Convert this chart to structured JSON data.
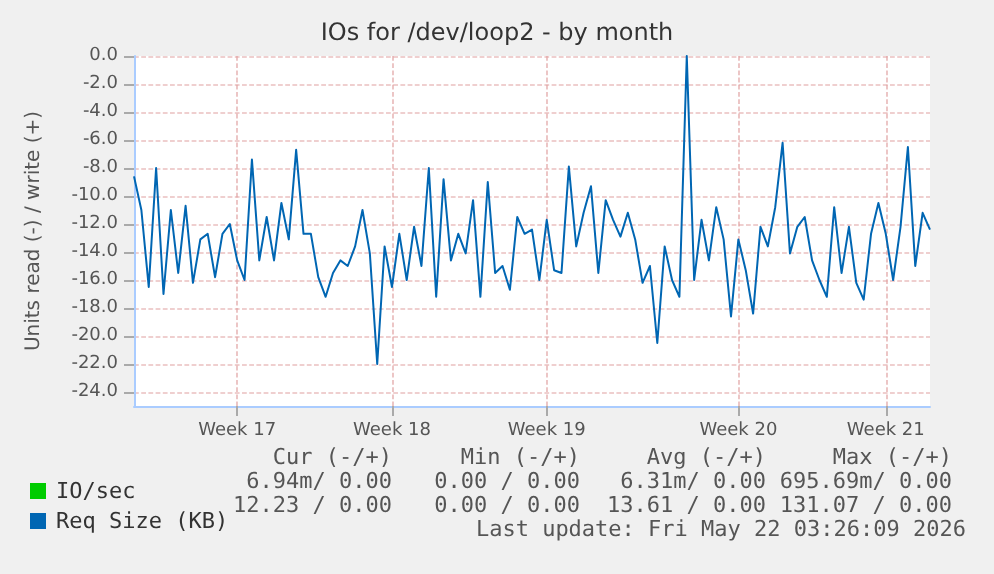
{
  "chart_data": {
    "type": "line",
    "title": "IOs for /dev/loop2 - by month",
    "ylabel": "Units read (-) / write (+)",
    "categories": [
      null,
      null,
      null,
      null,
      null,
      null,
      null,
      null,
      null,
      null,
      null,
      null,
      null,
      null,
      "Week 17",
      null,
      null,
      null,
      null,
      null,
      null,
      null,
      null,
      null,
      null,
      null,
      null,
      null,
      null,
      null,
      null,
      null,
      null,
      null,
      null,
      "Week 18",
      null,
      null,
      null,
      null,
      null,
      null,
      null,
      null,
      null,
      null,
      null,
      null,
      null,
      null,
      null,
      null,
      null,
      null,
      null,
      null,
      "Week 19",
      null,
      null,
      null,
      null,
      null,
      null,
      null,
      null,
      null,
      null,
      null,
      null,
      null,
      null,
      null,
      null,
      null,
      null,
      null,
      null,
      null,
      null,
      null,
      null,
      null,
      "Week 20",
      null,
      null,
      null,
      null,
      null,
      null,
      null,
      null,
      null,
      null,
      null,
      null,
      null,
      null,
      null,
      null,
      null,
      null,
      null,
      "Week 21",
      null,
      null,
      null,
      null,
      null,
      null
    ],
    "ylim": [
      -25,
      0
    ],
    "yticks": [
      {
        "value": 0,
        "label": "0.0"
      },
      {
        "value": -2,
        "label": "-2.0"
      },
      {
        "value": -4,
        "label": "-4.0"
      },
      {
        "value": -6,
        "label": "-6.0"
      },
      {
        "value": -8,
        "label": "-8.0"
      },
      {
        "value": -10,
        "label": "-10.0"
      },
      {
        "value": -12,
        "label": "-12.0"
      },
      {
        "value": -14,
        "label": "-14.0"
      },
      {
        "value": -16,
        "label": "-16.0"
      },
      {
        "value": -18,
        "label": "-18.0"
      },
      {
        "value": -20,
        "label": "-20.0"
      },
      {
        "value": -22,
        "label": "-22.0"
      },
      {
        "value": -24,
        "label": "-24.0"
      }
    ],
    "grid": true,
    "legend": "bottom",
    "marker": "none",
    "series": [
      {
        "name": "IO/sec",
        "color": "#00cc00",
        "values": [
          null,
          null,
          null,
          null,
          null,
          null,
          null,
          null,
          null,
          null,
          null,
          null,
          null,
          null,
          null,
          null,
          null,
          null,
          null,
          null,
          null,
          null,
          null,
          null,
          null,
          null,
          null,
          null,
          null,
          null,
          null,
          null,
          null,
          null,
          null,
          null,
          null,
          null,
          null,
          null,
          null,
          null,
          null,
          null,
          null,
          null,
          null,
          null,
          null,
          null,
          null,
          null,
          null,
          null,
          null,
          null,
          null,
          null,
          null,
          null,
          null,
          null,
          null,
          null,
          null,
          null,
          null,
          null,
          null,
          null,
          null,
          null,
          null,
          null,
          null,
          null,
          null,
          null,
          null,
          null,
          null,
          null,
          null,
          null,
          null,
          null,
          null,
          null,
          null,
          null,
          null,
          null,
          null,
          null,
          null,
          null,
          null,
          null,
          null,
          null,
          null,
          null,
          null,
          null,
          null,
          null,
          null,
          null,
          null
        ]
      },
      {
        "name": "Req Size (KB)",
        "color": "#0066b3",
        "values": [
          -8.6,
          -11.0,
          -16.5,
          -8.0,
          -17.0,
          -11.0,
          -15.5,
          -10.7,
          -16.2,
          -13.1,
          -12.7,
          -15.8,
          -12.7,
          -12.0,
          -14.6,
          -16.0,
          -7.4,
          -14.6,
          -11.5,
          -14.6,
          -10.5,
          -13.1,
          -6.7,
          -12.7,
          -12.7,
          -15.8,
          -17.2,
          -15.5,
          -14.6,
          -15.0,
          -13.6,
          -11.0,
          -14.1,
          -22.0,
          -13.6,
          -16.5,
          -12.7,
          -16.0,
          -12.2,
          -15.0,
          -8.0,
          -17.2,
          -8.8,
          -14.6,
          -12.7,
          -14.1,
          -10.3,
          -17.2,
          -9.0,
          -15.5,
          -15.0,
          -16.7,
          -11.5,
          -12.7,
          -12.4,
          -16.0,
          -11.7,
          -15.3,
          -15.5,
          -7.9,
          -13.6,
          -11.2,
          -9.3,
          -15.5,
          -10.3,
          -11.7,
          -12.9,
          -11.2,
          -13.1,
          -16.2,
          -15.0,
          -20.5,
          -13.6,
          -16.0,
          -17.2,
          0.0,
          -16.0,
          -11.7,
          -14.6,
          -10.8,
          -13.1,
          -18.6,
          -13.1,
          -15.3,
          -18.4,
          -12.2,
          -13.6,
          -10.8,
          -6.2,
          -14.1,
          -12.2,
          -11.5,
          -14.6,
          -16.0,
          -17.2,
          -10.8,
          -15.5,
          -12.2,
          -16.2,
          -17.4,
          -12.7,
          -10.5,
          -12.7,
          -16.0,
          -12.2,
          -6.5,
          -15.0,
          -11.2,
          -12.4
        ]
      }
    ],
    "annotations": [
      "Cur (-/+)",
      "Min (-/+)",
      "Avg (-/+)",
      "Max (-/+)",
      "6.94m/ 0.00",
      "0.00 / 0.00",
      "6.31m/ 0.00",
      "695.69m/ 0.00",
      "12.23 / 0.00",
      "0.00 / 0.00",
      "13.61 / 0.00",
      "131.07 / 0.00",
      "Last update: Fri May 22 03:26:09 2026"
    ]
  }
}
